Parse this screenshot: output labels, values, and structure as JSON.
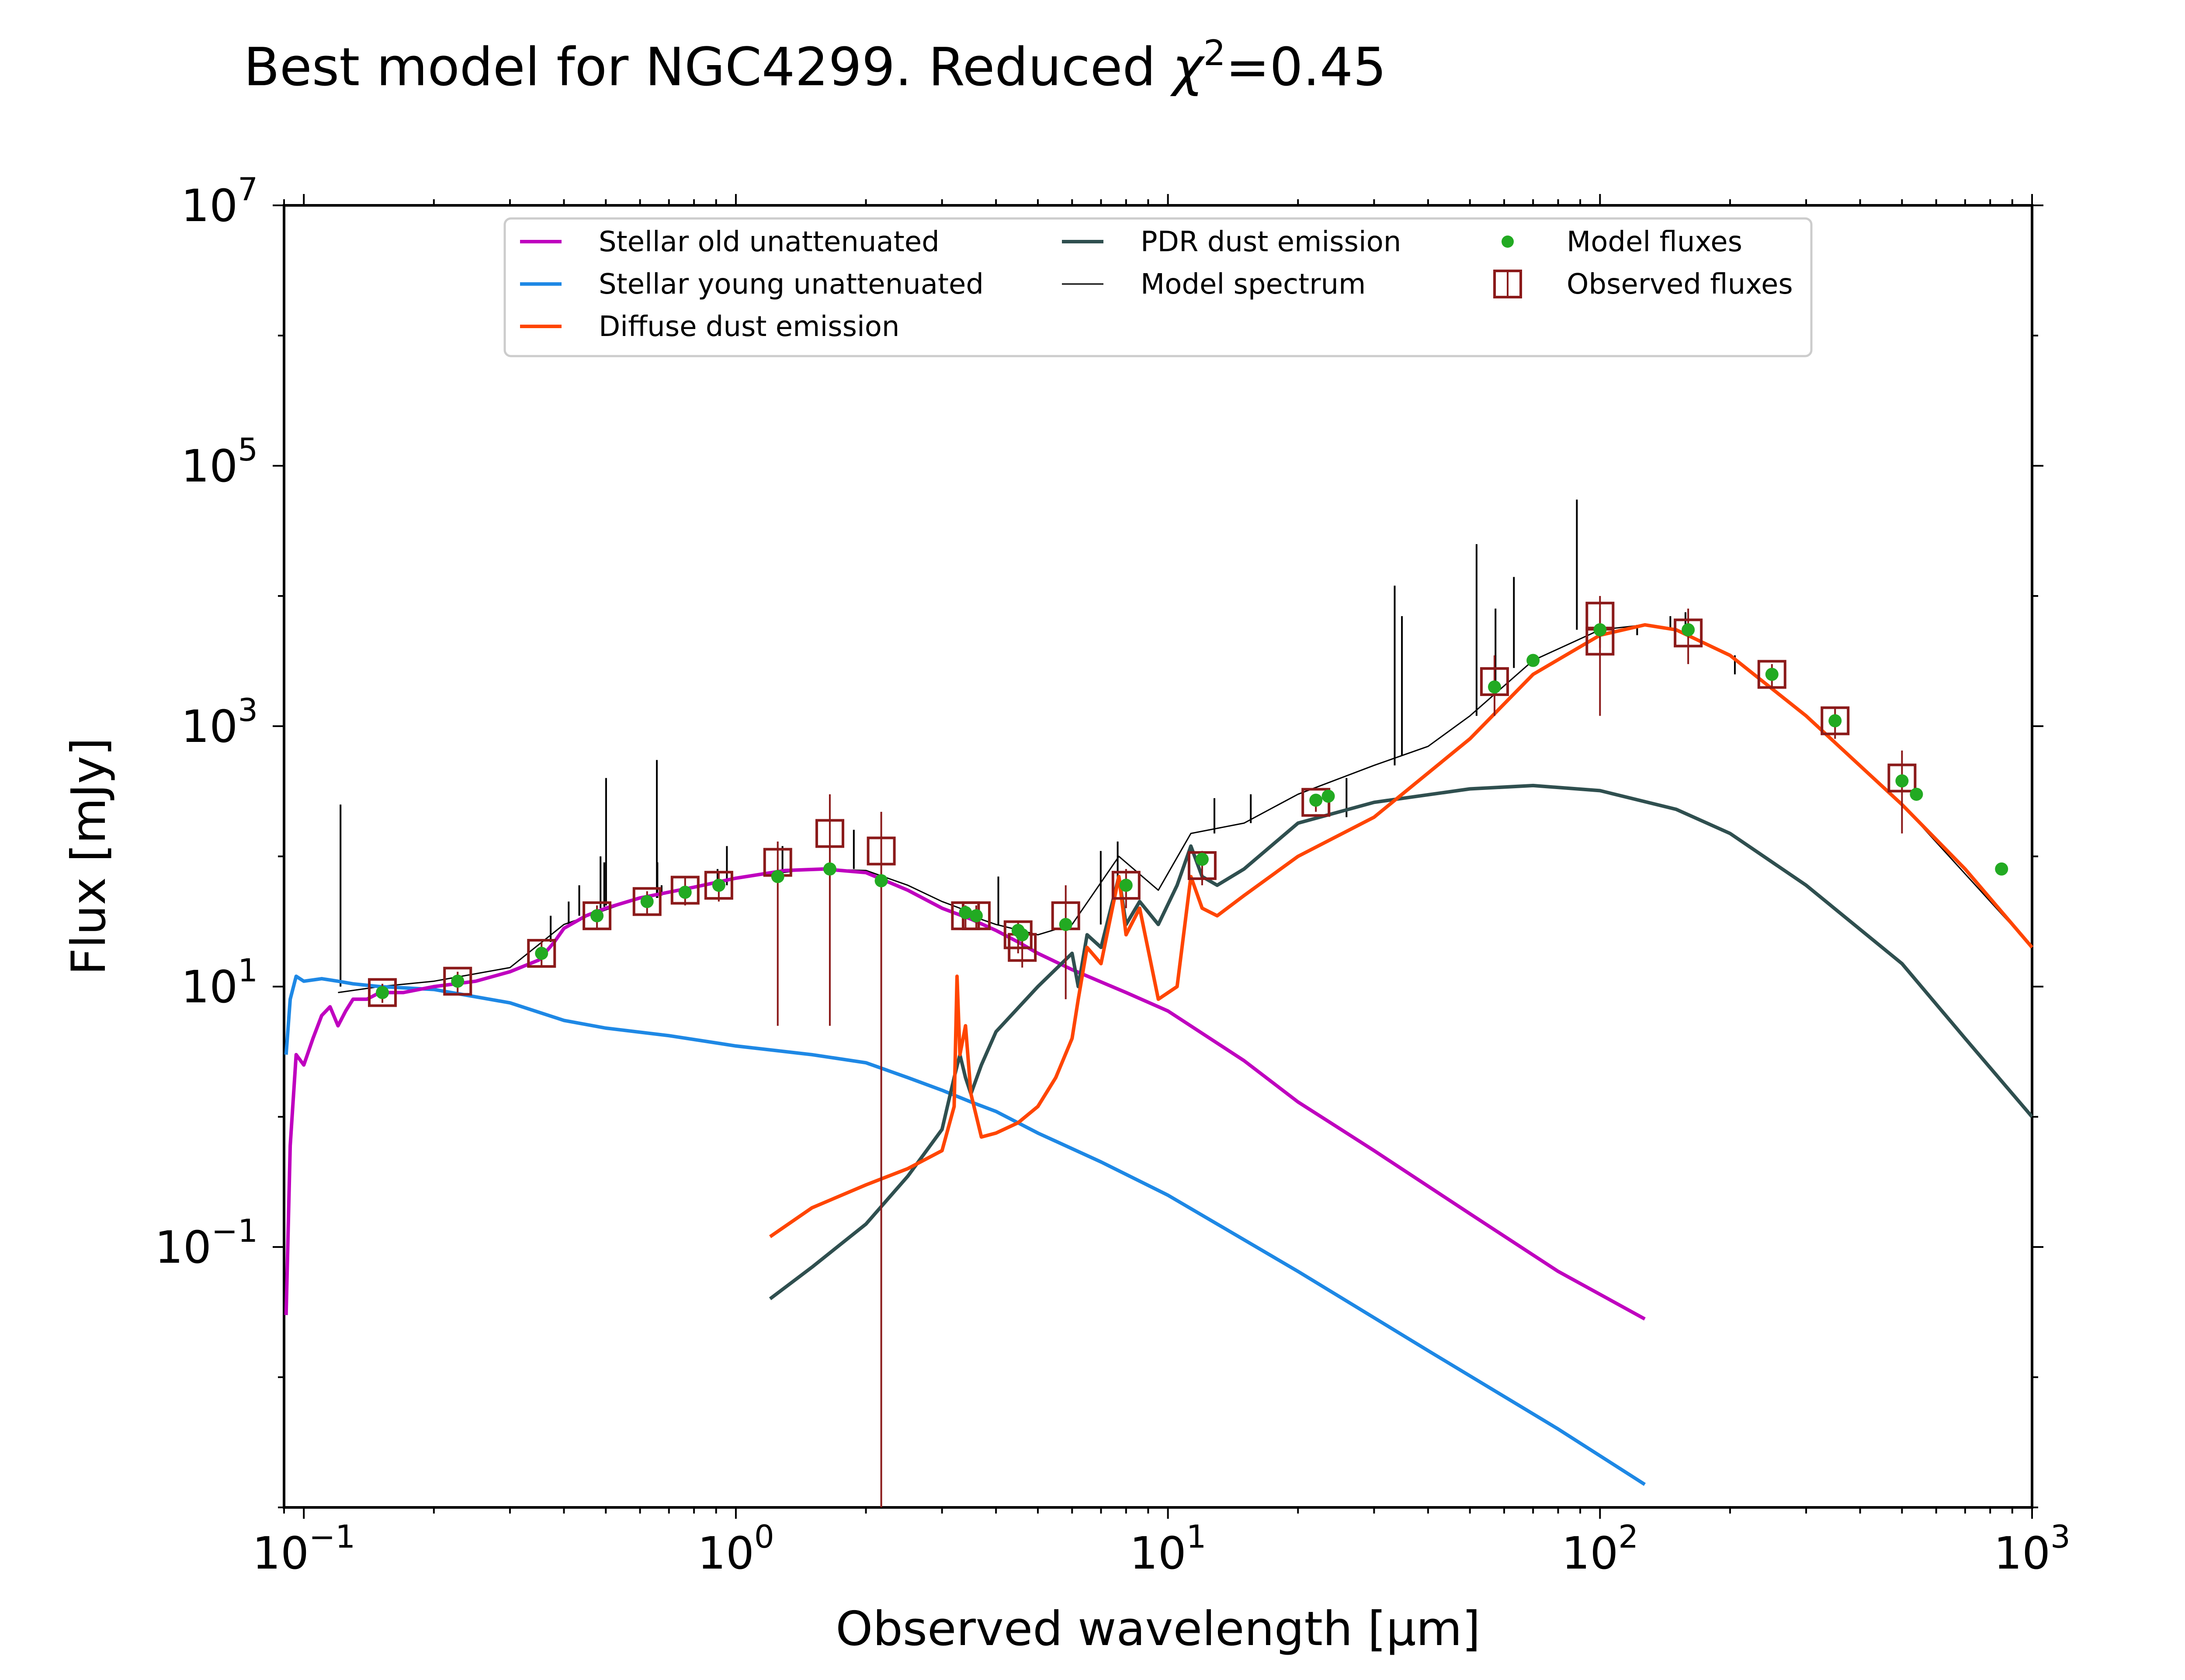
{
  "chart_data": {
    "type": "line",
    "title": "Best model for NGC4299. Reduced χ²=0.45",
    "title_parts": {
      "prefix": "Best model for NGC4299. Reduced ",
      "chi": "χ",
      "sup": "2",
      "suffix": "=0.45"
    },
    "xlabel": "Observed wavelength [μm]",
    "ylabel": "Flux [mJy]",
    "x_scale": "log",
    "y_scale": "log",
    "xlim": [
      0.09,
      1000
    ],
    "ylim": [
      0.001,
      10000000
    ],
    "x_ticks": [
      {
        "value": 0.1,
        "base": "10",
        "exp": "−1"
      },
      {
        "value": 1,
        "base": "10",
        "exp": "0"
      },
      {
        "value": 10,
        "base": "10",
        "exp": "1"
      },
      {
        "value": 100,
        "base": "10",
        "exp": "2"
      },
      {
        "value": 1000,
        "base": "10",
        "exp": "3"
      }
    ],
    "y_ticks": [
      {
        "value": 0.1,
        "base": "10",
        "exp": "−1"
      },
      {
        "value": 10,
        "base": "10",
        "exp": "1"
      },
      {
        "value": 1000,
        "base": "10",
        "exp": "3"
      },
      {
        "value": 100000,
        "base": "10",
        "exp": "5"
      },
      {
        "value": 10000000,
        "base": "10",
        "exp": "7"
      }
    ],
    "grid": false,
    "legend_placement": "top-center",
    "series": [
      {
        "name": "Stellar old unattenuated",
        "color": "#bf00bf",
        "x": [
          0.091,
          0.093,
          0.096,
          0.1,
          0.105,
          0.11,
          0.115,
          0.12,
          0.125,
          0.13,
          0.14,
          0.15,
          0.17,
          0.2,
          0.25,
          0.3,
          0.35,
          0.38,
          0.4,
          0.45,
          0.5,
          0.6,
          0.8,
          1.0,
          1.3,
          1.6,
          2.0,
          2.5,
          3.0,
          3.5,
          4.0,
          4.5,
          5.0,
          6.0,
          8.0,
          10,
          15,
          20,
          30,
          50,
          80,
          127
        ],
        "y": [
          0.03,
          0.6,
          3.0,
          2.5,
          4.0,
          6.0,
          7.0,
          5.0,
          6.5,
          8.0,
          8.0,
          9.0,
          9.0,
          10.0,
          11.0,
          13.0,
          16.0,
          22.0,
          28.0,
          35.0,
          40.0,
          48.0,
          58.0,
          68.0,
          78.0,
          80.0,
          75.0,
          55.0,
          40.0,
          33.0,
          27.0,
          22.0,
          18.0,
          13.5,
          9.0,
          6.5,
          2.7,
          1.3,
          0.55,
          0.18,
          0.065,
          0.028
        ]
      },
      {
        "name": "Stellar young unattenuated",
        "color": "#1e88e5",
        "x": [
          0.091,
          0.093,
          0.096,
          0.1,
          0.11,
          0.12,
          0.13,
          0.15,
          0.2,
          0.3,
          0.4,
          0.5,
          0.7,
          1.0,
          1.5,
          2.0,
          2.5,
          3.0,
          3.5,
          4.0,
          5.0,
          7.0,
          10,
          20,
          40,
          80,
          127
        ],
        "y": [
          3.0,
          8.0,
          12.0,
          11.0,
          11.5,
          11.0,
          10.5,
          10.0,
          9.5,
          7.5,
          5.5,
          4.8,
          4.2,
          3.5,
          3.0,
          2.6,
          2.0,
          1.6,
          1.3,
          1.1,
          0.75,
          0.45,
          0.25,
          0.065,
          0.016,
          0.004,
          0.0015
        ]
      },
      {
        "name": "Diffuse dust emission",
        "color": "#ff4500",
        "x": [
          1.2,
          1.5,
          2.0,
          2.5,
          3.0,
          3.2,
          3.25,
          3.3,
          3.4,
          3.5,
          3.7,
          4.0,
          4.5,
          5.0,
          5.5,
          6.0,
          6.2,
          6.5,
          7.0,
          7.7,
          8.0,
          8.6,
          9.5,
          10.5,
          11.3,
          12.0,
          13,
          15,
          20,
          30,
          50,
          70,
          100,
          127,
          150,
          200,
          300,
          500,
          700,
          1000
        ],
        "y": [
          0.12,
          0.2,
          0.3,
          0.4,
          0.55,
          1.2,
          12.0,
          3.0,
          5.0,
          1.5,
          0.7,
          0.75,
          0.9,
          1.2,
          2.0,
          4.0,
          8.0,
          20.0,
          15.0,
          70.0,
          25.0,
          40.0,
          8.0,
          10.0,
          70.0,
          40.0,
          35.0,
          50.0,
          100.0,
          200.0,
          800.0,
          2500.0,
          5000.0,
          6000.0,
          5500.0,
          3500.0,
          1200.0,
          250.0,
          80.0,
          20.0
        ]
      },
      {
        "name": "PDR dust emission",
        "color": "#2f4f4f",
        "x": [
          1.2,
          1.5,
          2.0,
          2.5,
          3.0,
          3.2,
          3.3,
          3.4,
          3.5,
          3.7,
          4.0,
          5.0,
          6.0,
          6.2,
          6.5,
          7.0,
          7.7,
          8.0,
          8.6,
          9.5,
          10.5,
          11.3,
          12.0,
          13,
          15,
          20,
          30,
          50,
          70,
          100,
          150,
          200,
          300,
          500,
          700,
          1000
        ],
        "y": [
          0.04,
          0.07,
          0.15,
          0.35,
          0.8,
          2.0,
          3.0,
          2.0,
          1.5,
          2.5,
          4.5,
          10.0,
          18.0,
          10.0,
          25.0,
          20.0,
          70.0,
          30.0,
          45.0,
          30.0,
          60.0,
          120.0,
          70.0,
          60.0,
          80.0,
          180.0,
          260.0,
          330.0,
          350.0,
          320.0,
          230.0,
          150.0,
          60.0,
          15.0,
          4.0,
          1.0
        ]
      },
      {
        "name": "Model spectrum",
        "color": "#000000",
        "x": [
          0.12,
          0.15,
          0.2,
          0.3,
          0.4,
          0.6,
          0.8,
          1.0,
          1.5,
          2.0,
          2.5,
          3.0,
          3.3,
          3.5,
          4.0,
          5.0,
          6.0,
          7.7,
          9.5,
          11.3,
          15,
          20,
          30,
          40,
          50,
          70,
          100,
          127,
          150,
          200,
          300,
          500,
          1000
        ],
        "y": [
          9.0,
          10.0,
          11.0,
          14.0,
          30.0,
          48.0,
          58.0,
          68.0,
          80.0,
          78.0,
          60.0,
          45.0,
          40.0,
          35.0,
          30.0,
          25.0,
          30.0,
          100.0,
          55.0,
          150.0,
          180.0,
          300.0,
          500.0,
          700.0,
          1200.0,
          3200.0,
          5500.0,
          6000.0,
          5500.0,
          3500.0,
          1200.0,
          250.0,
          20.0
        ]
      },
      {
        "name": "Model fluxes",
        "color": "#22aa22",
        "x": [
          0.152,
          0.227,
          0.355,
          0.477,
          0.623,
          0.763,
          0.913,
          1.25,
          1.65,
          2.17,
          3.4,
          3.6,
          4.5,
          4.6,
          5.8,
          8.0,
          12.0,
          22.0,
          23.5,
          57.0,
          70.0,
          100.0,
          160.0,
          250.0,
          350.0,
          500.0,
          540.0,
          850.0
        ],
        "y": [
          9.0,
          11.0,
          18.0,
          35.0,
          45.0,
          53.0,
          60.0,
          70.0,
          80.0,
          65.0,
          37.0,
          35.0,
          27.0,
          25.0,
          30.0,
          60.0,
          95.0,
          270.0,
          290.0,
          2000.0,
          3200.0,
          5500.0,
          5500.0,
          2500.0,
          1100.0,
          380.0,
          300.0,
          80.0
        ]
      },
      {
        "name": "Observed fluxes",
        "color": "#8b1a1a",
        "x": [
          0.152,
          0.227,
          0.355,
          0.477,
          0.623,
          0.763,
          0.913,
          1.25,
          1.65,
          2.17,
          3.4,
          3.6,
          4.5,
          4.6,
          5.8,
          8.0,
          12.0,
          22.0,
          57.0,
          100.0,
          100.0,
          160.0,
          250.0,
          350.0,
          500.0
        ],
        "y": [
          9.0,
          11.0,
          18.0,
          35.0,
          45.0,
          55.0,
          60.0,
          90.0,
          150.0,
          110.0,
          35.0,
          35.0,
          25.0,
          20.0,
          35.0,
          60.0,
          85.0,
          260.0,
          2200.0,
          7000.0,
          4500.0,
          5200.0,
          2500.0,
          1100.0,
          400.0
        ],
        "err_low": [
          7.5,
          9.0,
          14.0,
          28.0,
          36.0,
          42.0,
          45.0,
          5.0,
          5.0,
          0.001,
          28.0,
          28.0,
          18.0,
          14.0,
          8.0,
          40.0,
          60.0,
          220.0,
          1200.0,
          4000.0,
          1200.0,
          3000.0,
          2000.0,
          800.0,
          150.0
        ],
        "err_high": [
          10.5,
          13.0,
          22.0,
          42.0,
          54.0,
          68.0,
          75.0,
          130.0,
          300.0,
          220.0,
          42.0,
          42.0,
          32.0,
          26.0,
          60.0,
          80.0,
          110.0,
          300.0,
          3500.0,
          10000.0,
          8000.0,
          8000.0,
          3000.0,
          1400.0,
          650.0
        ]
      }
    ],
    "emission_lines": {
      "x": [
        0.1216,
        0.3727,
        0.4102,
        0.434,
        0.4861,
        0.4959,
        0.5007,
        0.6563,
        0.6583,
        0.6731,
        0.9069,
        0.9532,
        1.282,
        1.875,
        4.05,
        6.99,
        7.65,
        12.81,
        15.55,
        18.71,
        25.9,
        33.48,
        34.8,
        51.8,
        57.3,
        63.2,
        88.4,
        121.9,
        145.5,
        157.7,
        205.2
      ],
      "y": [
        250.0,
        35.0,
        45.0,
        60.0,
        100.0,
        90.0,
        400.0,
        550.0,
        90.0,
        60.0,
        80.0,
        120.0,
        120.0,
        160.0,
        70.0,
        110.0,
        130.0,
        280.0,
        300.0,
        250.0,
        200.0,
        12000.0,
        7000.0,
        25000.0,
        8000.0,
        14000.0,
        55000.0,
        5000.0,
        7000.0,
        7500.0,
        2500.0
      ],
      "base": [
        10.0,
        22.0,
        30.0,
        35.0,
        40.0,
        41.0,
        42.0,
        48.0,
        48.0,
        50.0,
        58.0,
        60.0,
        72.0,
        80.0,
        30.0,
        30.0,
        60.0,
        150.0,
        180.0,
        250.0,
        400.0,
        500.0,
        600.0,
        1200.0,
        2000.0,
        2800.0,
        5500.0,
        6000.0,
        5600.0,
        5400.0,
        3500.0
      ]
    }
  }
}
